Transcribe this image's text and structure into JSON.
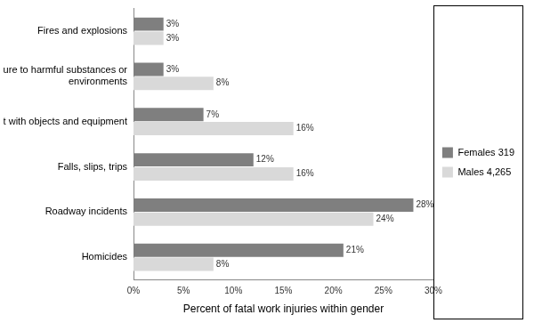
{
  "chart_data": {
    "type": "bar",
    "orientation": "horizontal",
    "categories": [
      "Fires and explosions",
      "Exposure to harmful substances or environments",
      "Contact with objects and equipment",
      "Falls, slips, trips",
      "Roadway incidents",
      "Homicides"
    ],
    "series": [
      {
        "name": "Females 319",
        "color": "#7f7f7f",
        "values": [
          3,
          3,
          7,
          12,
          28,
          21
        ],
        "value_labels": [
          "3%",
          "3%",
          "7%",
          "12%",
          "28%",
          "21%"
        ]
      },
      {
        "name": "Males 4,265",
        "color": "#d9d9d9",
        "values": [
          3,
          8,
          16,
          16,
          24,
          8
        ],
        "value_labels": [
          "3%",
          "8%",
          "16%",
          "16%",
          "24%",
          "8%"
        ]
      }
    ],
    "x_label": "Percent of fatal work injuries within gender",
    "xlim": [
      0,
      30
    ],
    "xticks": [
      {
        "value": 0,
        "label": "0%"
      },
      {
        "value": 5,
        "label": "5%"
      },
      {
        "value": 10,
        "label": "10%"
      },
      {
        "value": 15,
        "label": "15%"
      },
      {
        "value": 20,
        "label": "20%"
      },
      {
        "value": 25,
        "label": "25%"
      },
      {
        "value": 30,
        "label": "30%"
      }
    ],
    "grid": false,
    "legend": "right",
    "data_labels": true
  }
}
